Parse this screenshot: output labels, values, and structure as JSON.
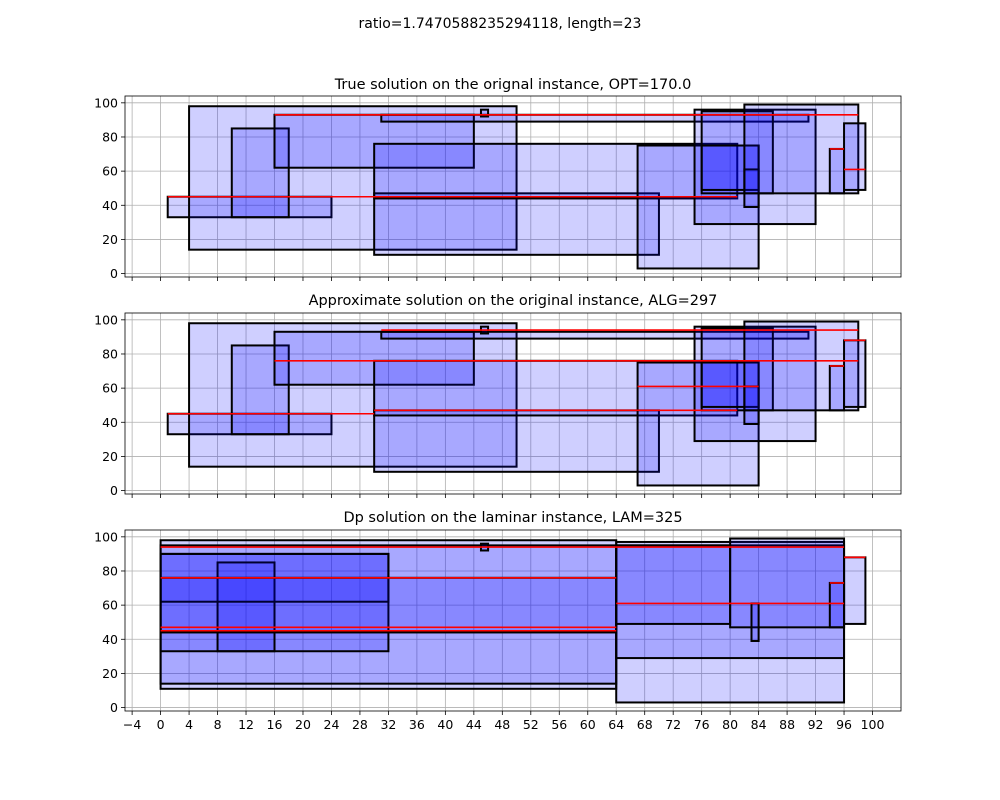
{
  "suptitle": "ratio=1.7470588235294118, length=23",
  "colors": {
    "fill": "#0000ff",
    "edge": "#000000",
    "line": "#ff0000",
    "grid": "#b0b0b0"
  },
  "chart_data": [
    {
      "type": "rectangles",
      "title": "True solution on the orignal instance, OPT=170.0",
      "xlim": [
        -5,
        104
      ],
      "ylim": [
        -2,
        104
      ],
      "xticks": [
        -4,
        0,
        4,
        8,
        12,
        16,
        20,
        24,
        28,
        32,
        36,
        40,
        44,
        48,
        52,
        56,
        60,
        64,
        68,
        72,
        76,
        80,
        84,
        88,
        92,
        96,
        100
      ],
      "yticks": [
        0,
        20,
        40,
        60,
        80,
        100
      ],
      "show_xtick_labels": false,
      "grid": true,
      "rects": [
        {
          "x0": 1,
          "x1": 24,
          "y0": 33,
          "y1": 45
        },
        {
          "x0": 4,
          "x1": 50,
          "y0": 14,
          "y1": 98
        },
        {
          "x0": 10,
          "x1": 18,
          "y0": 33,
          "y1": 85
        },
        {
          "x0": 16,
          "x1": 44,
          "y0": 62,
          "y1": 93
        },
        {
          "x0": 30,
          "x1": 70,
          "y0": 11,
          "y1": 47
        },
        {
          "x0": 30,
          "x1": 81,
          "y0": 44,
          "y1": 76
        },
        {
          "x0": 31,
          "x1": 91,
          "y0": 89,
          "y1": 93
        },
        {
          "x0": 45,
          "x1": 46,
          "y0": 92,
          "y1": 96
        },
        {
          "x0": 67,
          "x1": 84,
          "y0": 3,
          "y1": 75
        },
        {
          "x0": 75,
          "x1": 92,
          "y0": 29,
          "y1": 96
        },
        {
          "x0": 76,
          "x1": 86,
          "y0": 47,
          "y1": 95
        },
        {
          "x0": 76,
          "x1": 84,
          "y0": 49,
          "y1": 75
        },
        {
          "x0": 82,
          "x1": 84,
          "y0": 39,
          "y1": 61
        },
        {
          "x0": 82,
          "x1": 98,
          "y0": 47,
          "y1": 99
        },
        {
          "x0": 94,
          "x1": 96,
          "y0": 47,
          "y1": 73
        },
        {
          "x0": 96,
          "x1": 99,
          "y0": 49,
          "y1": 88
        }
      ],
      "lines": [
        {
          "x0": 1,
          "x1": 81,
          "y": 45
        },
        {
          "x0": 16,
          "x1": 98,
          "y": 93
        },
        {
          "x0": 94,
          "x1": 96,
          "y": 73
        },
        {
          "x0": 96,
          "x1": 99,
          "y": 61
        }
      ]
    },
    {
      "type": "rectangles",
      "title": "Approximate solution on the original instance, ALG=297",
      "xlim": [
        -5,
        104
      ],
      "ylim": [
        -2,
        104
      ],
      "xticks": [
        -4,
        0,
        4,
        8,
        12,
        16,
        20,
        24,
        28,
        32,
        36,
        40,
        44,
        48,
        52,
        56,
        60,
        64,
        68,
        72,
        76,
        80,
        84,
        88,
        92,
        96,
        100
      ],
      "yticks": [
        0,
        20,
        40,
        60,
        80,
        100
      ],
      "show_xtick_labels": false,
      "grid": true,
      "rects": [
        {
          "x0": 1,
          "x1": 24,
          "y0": 33,
          "y1": 45
        },
        {
          "x0": 4,
          "x1": 50,
          "y0": 14,
          "y1": 98
        },
        {
          "x0": 10,
          "x1": 18,
          "y0": 33,
          "y1": 85
        },
        {
          "x0": 16,
          "x1": 44,
          "y0": 62,
          "y1": 93
        },
        {
          "x0": 30,
          "x1": 70,
          "y0": 11,
          "y1": 47
        },
        {
          "x0": 30,
          "x1": 81,
          "y0": 44,
          "y1": 76
        },
        {
          "x0": 31,
          "x1": 91,
          "y0": 89,
          "y1": 93
        },
        {
          "x0": 45,
          "x1": 46,
          "y0": 92,
          "y1": 96
        },
        {
          "x0": 67,
          "x1": 84,
          "y0": 3,
          "y1": 75
        },
        {
          "x0": 75,
          "x1": 92,
          "y0": 29,
          "y1": 96
        },
        {
          "x0": 76,
          "x1": 86,
          "y0": 47,
          "y1": 95
        },
        {
          "x0": 76,
          "x1": 84,
          "y0": 49,
          "y1": 75
        },
        {
          "x0": 82,
          "x1": 84,
          "y0": 39,
          "y1": 61
        },
        {
          "x0": 82,
          "x1": 98,
          "y0": 47,
          "y1": 99
        },
        {
          "x0": 94,
          "x1": 96,
          "y0": 47,
          "y1": 73
        },
        {
          "x0": 96,
          "x1": 99,
          "y0": 49,
          "y1": 88
        }
      ],
      "lines": [
        {
          "x0": 1,
          "x1": 30,
          "y": 45
        },
        {
          "x0": 30,
          "x1": 81,
          "y": 47
        },
        {
          "x0": 16,
          "x1": 98,
          "y": 76
        },
        {
          "x0": 31,
          "x1": 98,
          "y": 94
        },
        {
          "x0": 67,
          "x1": 84,
          "y": 61
        },
        {
          "x0": 94,
          "x1": 96,
          "y": 73
        },
        {
          "x0": 96,
          "x1": 99,
          "y": 88
        }
      ]
    },
    {
      "type": "rectangles",
      "title": "Dp solution on the laminar instance, LAM=325",
      "xlim": [
        -5,
        104
      ],
      "ylim": [
        -2,
        104
      ],
      "xticks": [
        -4,
        0,
        4,
        8,
        12,
        16,
        20,
        24,
        28,
        32,
        36,
        40,
        44,
        48,
        52,
        56,
        60,
        64,
        68,
        72,
        76,
        80,
        84,
        88,
        92,
        96,
        100
      ],
      "yticks": [
        0,
        20,
        40,
        60,
        80,
        100
      ],
      "show_xtick_labels": true,
      "grid": true,
      "rects": [
        {
          "x0": 0,
          "x1": 64,
          "y0": 11,
          "y1": 98
        },
        {
          "x0": 0,
          "x1": 64,
          "y0": 14,
          "y1": 95
        },
        {
          "x0": 0,
          "x1": 32,
          "y0": 33,
          "y1": 90
        },
        {
          "x0": 8,
          "x1": 16,
          "y0": 33,
          "y1": 85
        },
        {
          "x0": 0,
          "x1": 32,
          "y0": 62,
          "y1": 90
        },
        {
          "x0": 0,
          "x1": 64,
          "y0": 44,
          "y1": 76
        },
        {
          "x0": 45,
          "x1": 46,
          "y0": 92,
          "y1": 96
        },
        {
          "x0": 64,
          "x1": 96,
          "y0": 3,
          "y1": 97
        },
        {
          "x0": 64,
          "x1": 96,
          "y0": 29,
          "y1": 95
        },
        {
          "x0": 64,
          "x1": 80,
          "y0": 49,
          "y1": 95
        },
        {
          "x0": 80,
          "x1": 96,
          "y0": 47,
          "y1": 99
        },
        {
          "x0": 83,
          "x1": 84,
          "y0": 39,
          "y1": 61
        },
        {
          "x0": 94,
          "x1": 96,
          "y0": 47,
          "y1": 73
        },
        {
          "x0": 96,
          "x1": 99,
          "y0": 49,
          "y1": 88
        }
      ],
      "lines": [
        {
          "x0": 0,
          "x1": 64,
          "y": 45
        },
        {
          "x0": 0,
          "x1": 64,
          "y": 47
        },
        {
          "x0": 0,
          "x1": 64,
          "y": 76
        },
        {
          "x0": 0,
          "x1": 96,
          "y": 94
        },
        {
          "x0": 64,
          "x1": 96,
          "y": 61
        },
        {
          "x0": 94,
          "x1": 96,
          "y": 73
        },
        {
          "x0": 96,
          "x1": 99,
          "y": 88
        }
      ]
    }
  ]
}
